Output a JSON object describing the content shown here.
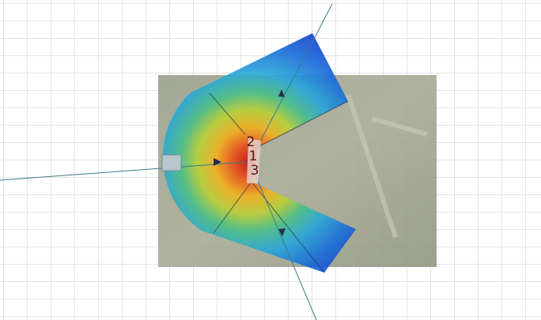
{
  "labels": [
    "2",
    "1",
    "3"
  ]
}
